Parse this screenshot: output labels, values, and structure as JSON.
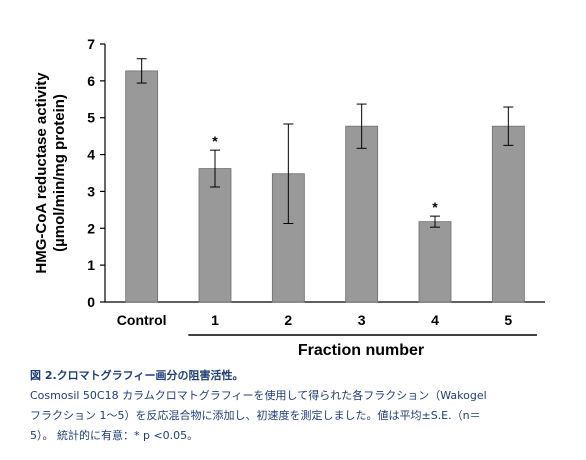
{
  "chart_data": {
    "type": "bar",
    "categories": [
      "Control",
      "1",
      "2",
      "3",
      "4",
      "5"
    ],
    "values": [
      6.27,
      3.62,
      3.48,
      4.77,
      2.18,
      4.77
    ],
    "errors": [
      0.33,
      0.5,
      1.35,
      0.6,
      0.15,
      0.52
    ],
    "significant": [
      false,
      true,
      false,
      false,
      true,
      false
    ],
    "significance_marker": "*",
    "ylabel_line1": "HMG-CoA reductase activity",
    "ylabel_line2": "(µmol/min/mg protein)",
    "xlabel": "Fraction number",
    "ylim": [
      0,
      7
    ],
    "yticks": [
      "0",
      "1",
      "2",
      "3",
      "4",
      "5",
      "6",
      "7"
    ],
    "bar_color": "#999999",
    "grid": false
  },
  "caption": {
    "title": "図 2.クロマトグラフィー画分の阻害活性。",
    "line1": "Cosmosil 50C18 カラムクロマトグラフィーを使用して得られた各フラクション（Wakogel",
    "line2": "フラクション 1～5）を反応混合物に添加し、初速度を測定しました。値は平均±S.E.（n＝",
    "line3": "5）。 統計的に有意：* p <0.05。"
  }
}
